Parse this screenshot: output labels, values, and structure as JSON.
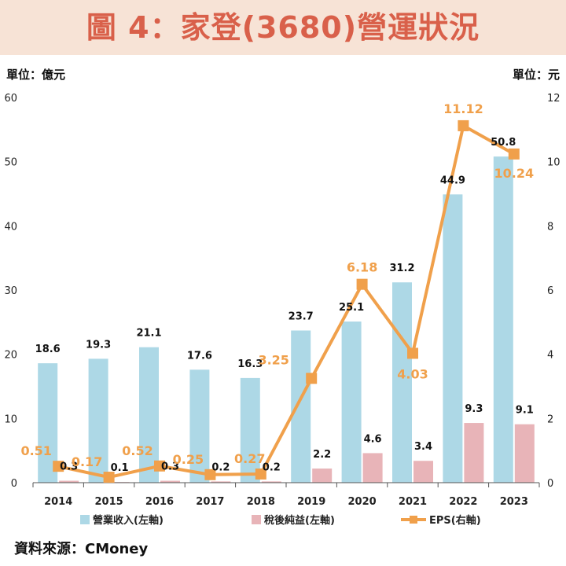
{
  "header": {
    "title": "圖 4：家登(3680)營運狀況"
  },
  "units": {
    "left": "單位：億元",
    "right": "單位：元"
  },
  "source": "資料來源：CMoney",
  "colors": {
    "revenue": "#add8e6",
    "net_income": "#e8b4b8",
    "eps": "#f0a04b",
    "title": "#d9604a",
    "title_band": "#f7e3d6"
  },
  "chart_data": {
    "type": "bar",
    "categories": [
      "2014",
      "2015",
      "2016",
      "2017",
      "2018",
      "2019",
      "2020",
      "2021",
      "2022",
      "2023"
    ],
    "series": [
      {
        "name": "營業收入(左軸)",
        "type": "bar",
        "axis": "left",
        "values": [
          18.6,
          19.3,
          21.1,
          17.6,
          16.3,
          23.7,
          25.1,
          31.2,
          44.9,
          50.8
        ],
        "labels": [
          "18.6",
          "19.3",
          "21.1",
          "17.6",
          "16.3",
          "23.7",
          "25.1",
          "31.2",
          "44.9",
          "50.8"
        ]
      },
      {
        "name": "稅後純益(左軸)",
        "type": "bar",
        "axis": "left",
        "values": [
          0.3,
          0.1,
          0.3,
          0.2,
          0.2,
          2.2,
          4.6,
          3.4,
          9.3,
          9.1
        ],
        "labels": [
          "0.3",
          "0.1",
          "0.3",
          "0.2",
          "0.2",
          "2.2",
          "4.6",
          "3.4",
          "9.3",
          "9.1"
        ]
      },
      {
        "name": "EPS(右軸)",
        "type": "line",
        "axis": "right",
        "values": [
          0.51,
          0.17,
          0.52,
          0.25,
          0.27,
          3.25,
          6.18,
          4.03,
          11.12,
          10.24
        ],
        "labels": [
          "0.51",
          "0.17",
          "0.52",
          "0.25",
          "0.27",
          "3.25",
          "6.18",
          "4.03",
          "11.12",
          "10.24"
        ]
      }
    ],
    "y_left": {
      "range": [
        0,
        60
      ],
      "ticks": [
        "0",
        "10",
        "20",
        "30",
        "40",
        "50",
        "60"
      ]
    },
    "y_right": {
      "range": [
        0,
        12
      ],
      "ticks": [
        "0",
        "2",
        "4",
        "6",
        "8",
        "10",
        "12"
      ]
    },
    "grid": false,
    "legend_position": "bottom"
  }
}
